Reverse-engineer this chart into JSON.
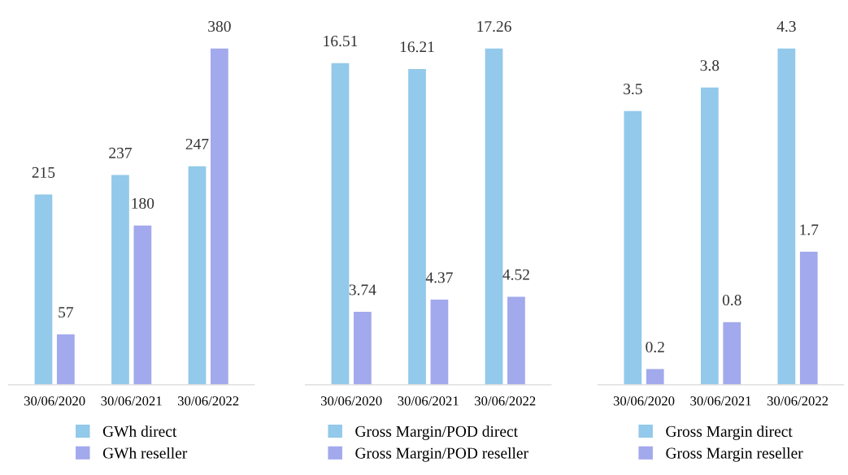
{
  "chart_data": [
    {
      "type": "bar",
      "categories": [
        "30/06/2020",
        "30/06/2021",
        "30/06/2022"
      ],
      "data_labels": true,
      "legend": "bottom",
      "grid": false,
      "series": [
        {
          "name": "GWh direct",
          "color": "#93c9ea",
          "values": [
            215,
            237,
            247
          ]
        },
        {
          "name": "GWh reseller",
          "color": "#a2a9ec",
          "values": [
            57,
            180,
            380
          ]
        }
      ]
    },
    {
      "type": "bar",
      "categories": [
        "30/06/2020",
        "30/06/2021",
        "30/06/2022"
      ],
      "data_labels": true,
      "legend": "bottom",
      "grid": false,
      "series": [
        {
          "name": "Gross Margin/POD direct",
          "color": "#93c9ea",
          "values": [
            16.51,
            16.21,
            17.26
          ]
        },
        {
          "name": "Gross Margin/POD reseller",
          "color": "#a2a9ec",
          "values": [
            3.74,
            4.37,
            4.52
          ]
        }
      ]
    },
    {
      "type": "bar",
      "categories": [
        "30/06/2020",
        "30/06/2021",
        "30/06/2022"
      ],
      "data_labels": true,
      "legend": "bottom",
      "grid": false,
      "series": [
        {
          "name": "Gross Margin direct",
          "color": "#93c9ea",
          "values": [
            3.5,
            3.8,
            4.3
          ]
        },
        {
          "name": "Gross Margin reseller",
          "color": "#a2a9ec",
          "values": [
            0.2,
            0.8,
            1.7
          ]
        }
      ]
    }
  ]
}
